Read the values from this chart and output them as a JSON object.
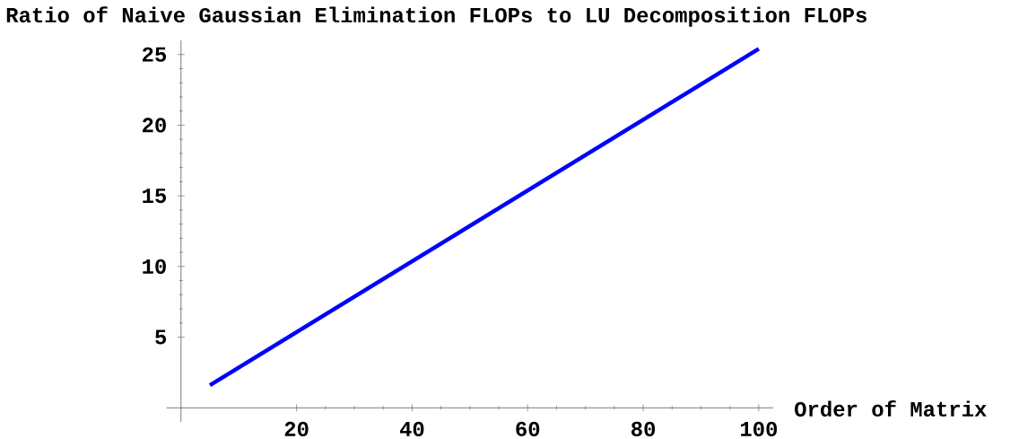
{
  "chart_data": {
    "type": "line",
    "title": "Ratio of Naive Gaussian Elimination FLOPs to LU Decomposition FLOPs",
    "xlabel": "Order of Matrix",
    "x": [
      5,
      100
    ],
    "series": [
      {
        "color": "#0000ff",
        "values": [
          1.6,
          25.4
        ]
      }
    ],
    "xlim": [
      -2.5,
      102.5
    ],
    "ylim": [
      -1,
      26
    ],
    "xticks": [
      20,
      40,
      60,
      80,
      100
    ],
    "yticks": [
      5,
      10,
      15,
      20,
      25
    ],
    "grid": false,
    "marker": "none",
    "line_style": "solid"
  }
}
